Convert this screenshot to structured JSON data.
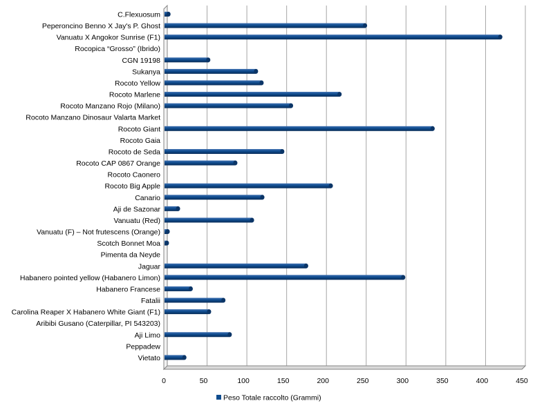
{
  "chart_data": {
    "type": "bar",
    "orientation": "horizontal",
    "categories": [
      "C.Flexuosum",
      "Peperoncino Benno X Jay's P. Ghost",
      "Vanuatu X Angokor Sunrise (F1)",
      "Rocopica “Grosso” (Ibrido)",
      "CGN 19198",
      "Sukanya",
      "Rocoto Yellow",
      "Rocoto Marlene",
      "Rocoto Manzano Rojo (Milano)",
      "Rocoto Manzano Dinosaur Valarta Market",
      "Rocoto Giant",
      "Rocoto Gaia",
      "Rocoto de Seda",
      "Rocoto CAP 0867 Orange",
      "Rocoto Caonero",
      "Rocoto Big Apple",
      "Canario",
      "Aji de Sazonar",
      "Vanuatu (Red)",
      "Vanuatu (F) – Not frutescens (Orange)",
      "Scotch Bonnet Moa",
      "Pimenta da Neyde",
      "Jaguar",
      "Habanero pointed yellow (Habanero Limon)",
      "Habanero Francese",
      "Fatalii",
      "Carolina Reaper X Habanero White Giant (F1)",
      "Aribibi Gusano (Caterpillar, PI 543203)",
      "Aji Limo",
      "Peppadew",
      "Vietato"
    ],
    "series": [
      {
        "name": "Peso Totale raccolto (Grammi)",
        "values": [
          5,
          252,
          422,
          0,
          55,
          115,
          122,
          220,
          159,
          0,
          337,
          0,
          148,
          89,
          0,
          209,
          123,
          17,
          110,
          4,
          3,
          0,
          178,
          300,
          33,
          74,
          56,
          0,
          82,
          0,
          25
        ]
      }
    ],
    "x_ticks": [
      "0",
      "50",
      "100",
      "150",
      "200",
      "250",
      "300",
      "350",
      "400",
      "450"
    ],
    "xlim": [
      0,
      450
    ],
    "grid": "vertical",
    "legend": "bottom",
    "colors": {
      "bar": "#0f4c8e",
      "bar_dark": "#0b3567",
      "grid": "#a6a6a6",
      "axis": "#868686"
    }
  }
}
